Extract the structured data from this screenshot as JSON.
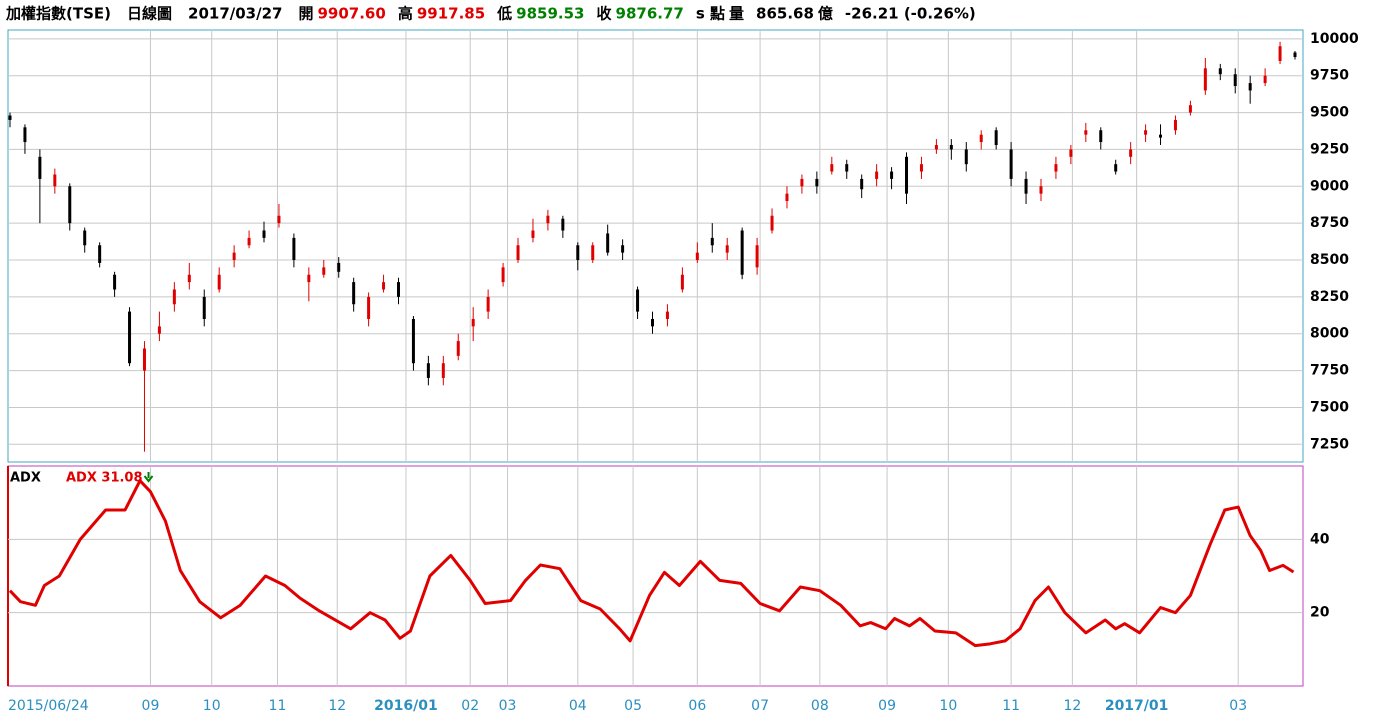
{
  "header": [
    {
      "text": "加權指數(TSE)",
      "color": "#000000"
    },
    {
      "text": "日線圖",
      "color": "#000000"
    },
    {
      "text": "2017/03/27",
      "color": "#000000"
    },
    {
      "text": "開",
      "color": "#000000"
    },
    {
      "text": "9907.60",
      "color": "#e00000"
    },
    {
      "text": "高",
      "color": "#000000"
    },
    {
      "text": "9917.85",
      "color": "#e00000"
    },
    {
      "text": "低",
      "color": "#000000"
    },
    {
      "text": "9859.53",
      "color": "#008000"
    },
    {
      "text": "收",
      "color": "#000000"
    },
    {
      "text": "9876.77",
      "color": "#008000"
    },
    {
      "text": "s 點",
      "color": "#000000"
    },
    {
      "text": "量",
      "color": "#000000"
    },
    {
      "text": "865.68",
      "color": "#000000"
    },
    {
      "text": "億",
      "color": "#000000"
    },
    {
      "text": "-26.21 (-0.26%)",
      "color": "#000000"
    }
  ],
  "chart_data": [
    {
      "type": "ohlc",
      "up_color": "#e00000",
      "down_color": "#000000",
      "grid": true,
      "xlim": [
        0,
        86
      ],
      "ylim": [
        7130,
        10060
      ],
      "yticks": [
        7250,
        7500,
        7750,
        8000,
        8250,
        8500,
        8750,
        9000,
        9250,
        9500,
        9750,
        10000
      ],
      "xticks": [
        {
          "value": 0,
          "label": "2015/06/24"
        },
        {
          "value": 9.4,
          "label": "09"
        },
        {
          "value": 13.5,
          "label": "10"
        },
        {
          "value": 17.9,
          "label": "11"
        },
        {
          "value": 21.9,
          "label": "12"
        },
        {
          "value": 26.5,
          "label": "2016/01"
        },
        {
          "value": 30.8,
          "label": "02"
        },
        {
          "value": 33.3,
          "label": "03"
        },
        {
          "value": 38.0,
          "label": "04"
        },
        {
          "value": 41.7,
          "label": "05"
        },
        {
          "value": 46.0,
          "label": "06"
        },
        {
          "value": 50.2,
          "label": "07"
        },
        {
          "value": 54.2,
          "label": "08"
        },
        {
          "value": 58.7,
          "label": "09"
        },
        {
          "value": 62.8,
          "label": "10"
        },
        {
          "value": 67.0,
          "label": "11"
        },
        {
          "value": 71.1,
          "label": "12"
        },
        {
          "value": 75.4,
          "label": "2017/01"
        },
        {
          "value": 82.2,
          "label": "03"
        }
      ],
      "ohlc": [
        [
          9480,
          9500,
          9400,
          9450
        ],
        [
          9400,
          9420,
          9220,
          9300
        ],
        [
          9200,
          9250,
          8750,
          9050
        ],
        [
          9000,
          9120,
          8950,
          9080
        ],
        [
          9000,
          9020,
          8700,
          8750
        ],
        [
          8700,
          8720,
          8550,
          8600
        ],
        [
          8600,
          8620,
          8450,
          8480
        ],
        [
          8400,
          8420,
          8250,
          8300
        ],
        [
          8150,
          8180,
          7780,
          7800
        ],
        [
          7750,
          7950,
          7200,
          7900
        ],
        [
          8000,
          8150,
          7950,
          8050
        ],
        [
          8200,
          8350,
          8150,
          8300
        ],
        [
          8350,
          8480,
          8300,
          8400
        ],
        [
          8250,
          8300,
          8050,
          8100
        ],
        [
          8300,
          8450,
          8280,
          8400
        ],
        [
          8500,
          8600,
          8450,
          8550
        ],
        [
          8600,
          8700,
          8580,
          8650
        ],
        [
          8700,
          8760,
          8620,
          8650
        ],
        [
          8750,
          8880,
          8720,
          8800
        ],
        [
          8650,
          8680,
          8450,
          8500
        ],
        [
          8350,
          8450,
          8220,
          8400
        ],
        [
          8400,
          8500,
          8380,
          8450
        ],
        [
          8480,
          8520,
          8380,
          8420
        ],
        [
          8350,
          8380,
          8150,
          8200
        ],
        [
          8100,
          8280,
          8050,
          8250
        ],
        [
          8300,
          8400,
          8280,
          8350
        ],
        [
          8350,
          8380,
          8200,
          8250
        ],
        [
          8100,
          8120,
          7750,
          7800
        ],
        [
          7800,
          7850,
          7650,
          7700
        ],
        [
          7700,
          7850,
          7650,
          7800
        ],
        [
          7850,
          8000,
          7820,
          7950
        ],
        [
          8050,
          8180,
          7950,
          8100
        ],
        [
          8150,
          8300,
          8100,
          8250
        ],
        [
          8350,
          8480,
          8320,
          8450
        ],
        [
          8500,
          8650,
          8480,
          8600
        ],
        [
          8650,
          8780,
          8620,
          8700
        ],
        [
          8750,
          8840,
          8700,
          8800
        ],
        [
          8780,
          8800,
          8650,
          8700
        ],
        [
          8600,
          8620,
          8430,
          8500
        ],
        [
          8500,
          8620,
          8480,
          8600
        ],
        [
          8680,
          8740,
          8530,
          8550
        ],
        [
          8600,
          8640,
          8500,
          8550
        ],
        [
          8300,
          8320,
          8100,
          8150
        ],
        [
          8100,
          8150,
          8000,
          8050
        ],
        [
          8100,
          8200,
          8050,
          8150
        ],
        [
          8300,
          8450,
          8280,
          8400
        ],
        [
          8500,
          8620,
          8480,
          8550
        ],
        [
          8650,
          8750,
          8550,
          8600
        ],
        [
          8550,
          8650,
          8500,
          8600
        ],
        [
          8700,
          8720,
          8370,
          8400
        ],
        [
          8450,
          8650,
          8400,
          8600
        ],
        [
          8700,
          8850,
          8680,
          8800
        ],
        [
          8900,
          9000,
          8850,
          8950
        ],
        [
          9000,
          9080,
          8950,
          9050
        ],
        [
          9050,
          9100,
          8950,
          9000
        ],
        [
          9100,
          9200,
          9080,
          9150
        ],
        [
          9150,
          9180,
          9050,
          9100
        ],
        [
          9050,
          9080,
          8920,
          8980
        ],
        [
          9050,
          9150,
          9000,
          9100
        ],
        [
          9100,
          9130,
          8980,
          9050
        ],
        [
          9200,
          9230,
          8880,
          8950
        ],
        [
          9100,
          9200,
          9050,
          9150
        ],
        [
          9250,
          9320,
          9220,
          9280
        ],
        [
          9280,
          9320,
          9180,
          9250
        ],
        [
          9250,
          9300,
          9100,
          9150
        ],
        [
          9300,
          9380,
          9250,
          9350
        ],
        [
          9380,
          9400,
          9250,
          9280
        ],
        [
          9250,
          9300,
          9000,
          9050
        ],
        [
          9050,
          9100,
          8880,
          8950
        ],
        [
          8950,
          9050,
          8900,
          9000
        ],
        [
          9100,
          9200,
          9050,
          9150
        ],
        [
          9200,
          9280,
          9150,
          9250
        ],
        [
          9350,
          9430,
          9300,
          9380
        ],
        [
          9380,
          9400,
          9250,
          9300
        ],
        [
          9150,
          9180,
          9080,
          9100
        ],
        [
          9200,
          9300,
          9150,
          9250
        ],
        [
          9350,
          9420,
          9300,
          9380
        ],
        [
          9350,
          9420,
          9280,
          9330
        ],
        [
          9380,
          9480,
          9350,
          9450
        ],
        [
          9500,
          9580,
          9480,
          9550
        ],
        [
          9650,
          9870,
          9620,
          9800
        ],
        [
          9800,
          9830,
          9720,
          9760
        ],
        [
          9760,
          9800,
          9630,
          9680
        ],
        [
          9700,
          9750,
          9560,
          9650
        ],
        [
          9700,
          9800,
          9680,
          9750
        ],
        [
          9850,
          9980,
          9830,
          9950
        ],
        [
          9907.6,
          9917.85,
          9859.53,
          9876.77
        ]
      ]
    },
    {
      "type": "line",
      "title": "ADX",
      "legend": "ADX 31.08",
      "color": "#e00000",
      "grid": true,
      "xlim": [
        0,
        86
      ],
      "ylim": [
        0,
        60
      ],
      "yticks": [
        20,
        40
      ],
      "x": [
        0,
        0.7,
        1.7,
        2.3,
        3.3,
        4.7,
        6.4,
        7.7,
        8.7,
        9.4,
        10.4,
        11.4,
        12.7,
        14.1,
        15.4,
        17.1,
        18.4,
        19.4,
        20.7,
        22.8,
        24.1,
        25.1,
        26.1,
        26.8,
        28.1,
        29.5,
        30.8,
        31.8,
        33.5,
        34.5,
        35.5,
        36.8,
        38.2,
        39.5,
        40.8,
        41.5,
        42.8,
        43.8,
        44.8,
        46.2,
        47.5,
        48.9,
        50.2,
        51.5,
        52.9,
        54.2,
        55.6,
        56.9,
        57.6,
        58.6,
        59.2,
        60.2,
        60.9,
        61.9,
        63.3,
        64.6,
        65.6,
        66.6,
        67.6,
        68.6,
        69.5,
        70.6,
        72.0,
        73.3,
        74.0,
        74.6,
        75.6,
        77.0,
        78.0,
        79.0,
        80.3,
        81.3,
        82.2,
        83.0,
        83.7,
        84.3,
        85.2,
        85.9
      ],
      "values": [
        26,
        23,
        22,
        27.4,
        30,
        40,
        48,
        48,
        56,
        53,
        45,
        31.5,
        23,
        18.6,
        22,
        30,
        27.4,
        24,
        20.5,
        15.6,
        20,
        18,
        13,
        15,
        30,
        35.6,
        28.8,
        22.5,
        23.3,
        28.8,
        33,
        32,
        23.3,
        21,
        15.6,
        12.3,
        24.7,
        31,
        27.4,
        34,
        28.8,
        28,
        22.5,
        20.5,
        27,
        26,
        22,
        16.4,
        17.3,
        15.6,
        18.4,
        16.4,
        18.4,
        15,
        14.5,
        11,
        11.5,
        12.3,
        15.6,
        23.3,
        27,
        20,
        14.5,
        18,
        15.6,
        17,
        14.5,
        21.4,
        20,
        24.7,
        38.4,
        48,
        48.8,
        41,
        37,
        31.5,
        32.9,
        31.08
      ]
    }
  ]
}
